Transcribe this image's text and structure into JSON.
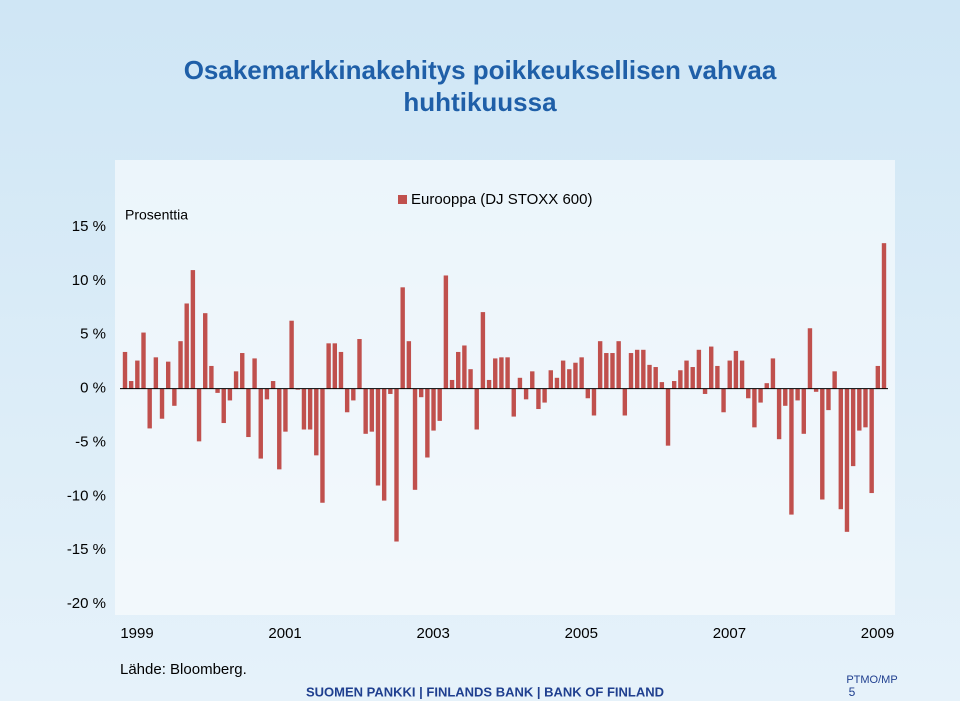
{
  "chart_data": {
    "type": "bar",
    "title": "Osakemarkkinakehitys poikkeuksellisen vahvaa huhtikuussa",
    "y_axis_label": "Prosenttia",
    "source": "Lähde: Bloomberg.",
    "footer": "SUOMEN PANKKI | FINLANDS BANK | BANK OF FINLAND",
    "footer_code": "PTMO/MP",
    "page_number": "5",
    "categories": [
      "1999",
      null,
      null,
      null,
      null,
      null,
      null,
      null,
      null,
      null,
      null,
      null,
      null,
      null,
      null,
      null,
      null,
      null,
      null,
      null,
      null,
      null,
      null,
      null,
      "2001",
      null,
      null,
      null,
      null,
      null,
      null,
      null,
      null,
      null,
      null,
      null,
      null,
      null,
      null,
      null,
      null,
      null,
      null,
      null,
      null,
      null,
      null,
      null,
      "2003",
      null,
      null,
      null,
      null,
      null,
      null,
      null,
      null,
      null,
      null,
      null,
      null,
      null,
      null,
      null,
      null,
      null,
      null,
      null,
      null,
      null,
      null,
      null,
      "2005",
      null,
      null,
      null,
      null,
      null,
      null,
      null,
      null,
      null,
      null,
      null,
      null,
      null,
      null,
      null,
      null,
      null,
      null,
      null,
      null,
      null,
      null,
      null,
      "2007",
      null,
      null,
      null,
      null,
      null,
      null,
      null,
      null,
      null,
      null,
      null,
      null,
      null,
      null,
      null,
      null,
      null,
      null,
      null,
      null,
      null,
      null,
      null,
      "2009",
      null,
      null,
      null
    ],
    "series": [
      {
        "name": "Eurooppa (DJ STOXX 600)",
        "color": "#c0504d",
        "values": [
          3.4,
          0.7,
          2.6,
          5.2,
          -3.7,
          2.9,
          -2.8,
          2.5,
          -1.6,
          4.4,
          7.9,
          11.0,
          -4.9,
          7.0,
          2.1,
          -0.4,
          -3.2,
          -1.1,
          1.6,
          3.3,
          -4.5,
          2.8,
          -6.5,
          -1.0,
          0.7,
          -7.5,
          -4.0,
          6.3,
          -0.1,
          -3.8,
          -3.8,
          -6.2,
          -10.6,
          4.2,
          4.2,
          3.4,
          -2.2,
          -1.1,
          4.6,
          -4.2,
          -4.0,
          -9.0,
          -10.4,
          -0.5,
          -14.2,
          9.4,
          4.4,
          -9.4,
          -0.8,
          -6.4,
          -3.9,
          -3.0,
          10.5,
          0.8,
          3.4,
          4.0,
          1.8,
          -3.8,
          7.1,
          0.8,
          2.8,
          2.9,
          2.9,
          -2.6,
          1.0,
          -1.0,
          1.6,
          -1.9,
          -1.3,
          1.7,
          1.0,
          2.6,
          1.8,
          2.4,
          2.9,
          -0.9,
          -2.5,
          4.4,
          3.3,
          3.3,
          4.4,
          -2.5,
          3.3,
          3.6,
          3.6,
          2.2,
          2.0,
          0.6,
          -5.3,
          0.7,
          1.7,
          2.6,
          2.0,
          3.6,
          -0.5,
          3.9,
          2.1,
          -2.2,
          2.6,
          3.5,
          2.6,
          -0.9,
          -3.6,
          -1.3,
          0.5,
          2.8,
          -4.7,
          -1.6,
          -11.7,
          -1.1,
          -4.2,
          5.6,
          -0.3,
          -10.3,
          -2.0,
          1.6,
          -11.2,
          -13.3,
          -7.2,
          -3.9,
          -3.6,
          -9.7,
          2.1,
          13.5
        ]
      }
    ],
    "ylim": [
      -20,
      15
    ],
    "yticks": [
      {
        "value": -20,
        "label": "-20 %"
      },
      {
        "value": -15,
        "label": "-15 %"
      },
      {
        "value": -10,
        "label": "-10 %"
      },
      {
        "value": -5,
        "label": "-5 %"
      },
      {
        "value": 0,
        "label": "0 %"
      },
      {
        "value": 5,
        "label": "5 %"
      },
      {
        "value": 10,
        "label": "10 %"
      },
      {
        "value": 15,
        "label": "15 %"
      }
    ],
    "legend": "top"
  }
}
